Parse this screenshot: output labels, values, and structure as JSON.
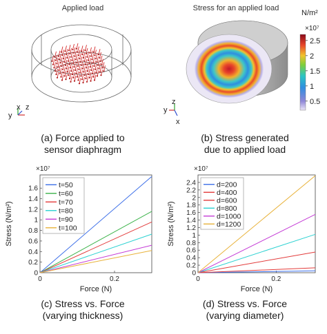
{
  "panel_a": {
    "title": "Applied load",
    "caption_line1": "(a) Force applied to",
    "caption_line2": "sensor diaphragm",
    "axis_labels": [
      "y",
      "x",
      "z"
    ]
  },
  "panel_b": {
    "title": "Stress for an applied load",
    "colorbar": {
      "unit": "N/m²",
      "multiplier": "×10⁷",
      "ticks": [
        "2.5",
        "2",
        "1.5",
        "1",
        "0.5"
      ],
      "tick_values": [
        2.5,
        2,
        1.5,
        1,
        0.5
      ],
      "range": [
        0.2,
        2.7
      ]
    },
    "caption_line1": "(b) Stress generated",
    "caption_line2": "due to applied load",
    "axis_labels": [
      "y",
      "z",
      "x"
    ]
  },
  "chart_data": [
    {
      "type": "line",
      "multiplier": "×10⁷",
      "xlabel": "Force (N)",
      "ylabel": "Stress (N/m²)",
      "xlim": [
        0,
        0.3
      ],
      "ylim": [
        0,
        1.85
      ],
      "x_ticks": [
        0,
        0.2
      ],
      "x_tick_labels": [
        "0",
        "0.2"
      ],
      "y_ticks": [
        0,
        0.2,
        0.4,
        0.6,
        0.8,
        1,
        1.2,
        1.4,
        1.6
      ],
      "y_tick_labels": [
        "0",
        "0.2",
        "0.4",
        "0.6",
        "0.8",
        "1",
        "1.2",
        "1.4",
        "1.6"
      ],
      "legend_position": "top-left",
      "x": [
        0,
        0.3
      ],
      "series": [
        {
          "name": "t=50",
          "color": "#3b6ee8",
          "values": [
            0,
            1.82
          ]
        },
        {
          "name": "t=60",
          "color": "#3cb34a",
          "values": [
            0,
            1.16
          ]
        },
        {
          "name": "t=70",
          "color": "#e23a3a",
          "values": [
            0,
            0.96
          ]
        },
        {
          "name": "t=80",
          "color": "#2ad1d1",
          "values": [
            0,
            0.73
          ]
        },
        {
          "name": "t=90",
          "color": "#c43bd6",
          "values": [
            0,
            0.52
          ]
        },
        {
          "name": "t=100",
          "color": "#e8b23a",
          "values": [
            0,
            0.42
          ]
        }
      ],
      "caption_line1": "(c) Stress vs. Force",
      "caption_line2": "(varying thickness)"
    },
    {
      "type": "line",
      "multiplier": "×10⁷",
      "xlabel": "Force (N)",
      "ylabel": "Stress (N/m²)",
      "xlim": [
        0,
        0.3
      ],
      "ylim": [
        0,
        2.6
      ],
      "x_ticks": [
        0,
        0.2
      ],
      "x_tick_labels": [
        "0",
        "0.2"
      ],
      "y_ticks": [
        0,
        0.2,
        0.4,
        0.6,
        0.8,
        1,
        1.2,
        1.4,
        1.6,
        1.8,
        2,
        2.2,
        2.4
      ],
      "y_tick_labels": [
        "0",
        "0.2",
        "0.4",
        "0.6",
        "0.8",
        "1",
        "1.2",
        "1.4",
        "1.6",
        "1.8",
        "2",
        "2.2",
        "2.4"
      ],
      "legend_position": "top-left",
      "x": [
        0,
        0.3
      ],
      "series": [
        {
          "name": "d=200",
          "color": "#3b6ee8",
          "values": [
            0,
            0.05
          ]
        },
        {
          "name": "d=400",
          "color": "#e23a3a",
          "values": [
            0,
            0.13
          ]
        },
        {
          "name": "d=600",
          "color": "#e23a3a",
          "values": [
            0,
            0.55
          ]
        },
        {
          "name": "d=800",
          "color": "#2ad1d1",
          "values": [
            0,
            1.02
          ]
        },
        {
          "name": "d=1000",
          "color": "#c43bd6",
          "values": [
            0,
            1.55
          ]
        },
        {
          "name": "d=1200",
          "color": "#e8b23a",
          "values": [
            0,
            2.58
          ]
        }
      ],
      "caption_line1": "(d) Stress vs. Force",
      "caption_line2": "(varying diameter)"
    }
  ]
}
